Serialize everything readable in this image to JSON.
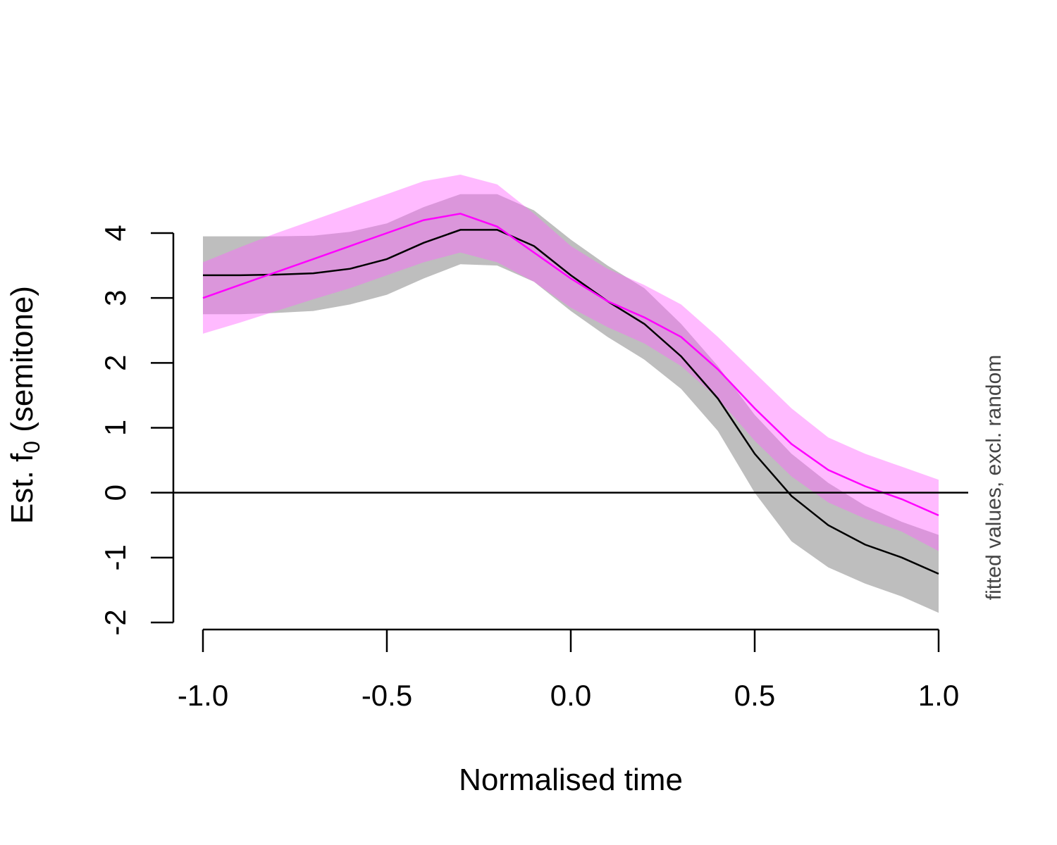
{
  "chart_data": {
    "type": "line",
    "title": "",
    "xlabel": "Normalised time",
    "ylabel": "Est. f",
    "ylabel_subscript": "0",
    "ylabel_suffix": " (semitone)",
    "side_note": "fitted values, excl. random",
    "xlim": [
      -1.0,
      1.0
    ],
    "ylim": [
      -2,
      4
    ],
    "x_ticks": [
      "-1.0",
      "-0.5",
      "0.0",
      "0.5",
      "1.0"
    ],
    "y_ticks": [
      "-2",
      "-1",
      "0",
      "1",
      "2",
      "3",
      "4"
    ],
    "reference_line_y": 0,
    "x": [
      -1.0,
      -0.9,
      -0.8,
      -0.7,
      -0.6,
      -0.5,
      -0.4,
      -0.3,
      -0.2,
      -0.1,
      0.0,
      0.1,
      0.2,
      0.3,
      0.4,
      0.5,
      0.6,
      0.7,
      0.8,
      0.9,
      1.0
    ],
    "series": [
      {
        "color": "#000000",
        "band_color": "#bebebe",
        "values": [
          3.35,
          3.35,
          3.36,
          3.38,
          3.45,
          3.6,
          3.85,
          4.05,
          4.05,
          3.8,
          3.35,
          2.95,
          2.6,
          2.1,
          1.45,
          0.6,
          -0.05,
          -0.5,
          -0.8,
          -1.0,
          -1.25
        ],
        "lower": [
          2.75,
          2.75,
          2.77,
          2.8,
          2.9,
          3.05,
          3.3,
          3.52,
          3.5,
          3.25,
          2.8,
          2.4,
          2.05,
          1.6,
          0.95,
          0.0,
          -0.75,
          -1.15,
          -1.4,
          -1.6,
          -1.85
        ],
        "upper": [
          3.95,
          3.95,
          3.95,
          3.96,
          4.02,
          4.15,
          4.4,
          4.6,
          4.6,
          4.35,
          3.9,
          3.5,
          3.15,
          2.6,
          1.95,
          1.2,
          0.6,
          0.15,
          -0.2,
          -0.45,
          -0.65
        ]
      },
      {
        "color": "#ff00ff",
        "band_color": "#ff66ff",
        "values": [
          3.0,
          3.2,
          3.4,
          3.6,
          3.8,
          4.0,
          4.2,
          4.3,
          4.1,
          3.7,
          3.3,
          2.95,
          2.7,
          2.4,
          1.9,
          1.3,
          0.75,
          0.35,
          0.1,
          -0.1,
          -0.35
        ],
        "lower": [
          2.45,
          2.62,
          2.8,
          2.98,
          3.15,
          3.35,
          3.55,
          3.7,
          3.55,
          3.25,
          2.85,
          2.55,
          2.3,
          1.95,
          1.45,
          0.8,
          0.25,
          -0.15,
          -0.4,
          -0.6,
          -0.9
        ],
        "upper": [
          3.55,
          3.78,
          4.0,
          4.2,
          4.4,
          4.6,
          4.8,
          4.9,
          4.75,
          4.3,
          3.8,
          3.45,
          3.2,
          2.9,
          2.4,
          1.85,
          1.3,
          0.85,
          0.6,
          0.4,
          0.2
        ]
      }
    ]
  }
}
